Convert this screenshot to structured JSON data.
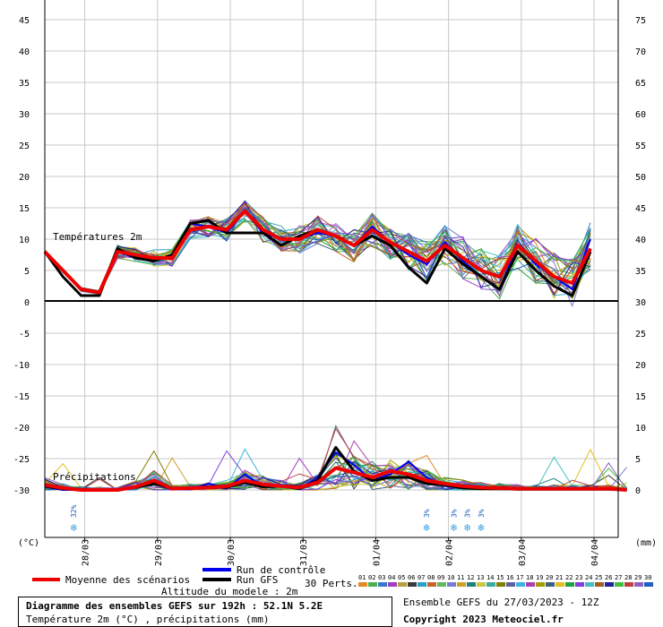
{
  "chart_data": {
    "type": "line",
    "title": "Diagramme des ensembles GEFS sur 192h : 52.1N 5.2E",
    "subtitle": "Température 2m (°C) , précipitations (mm)",
    "x_tick_labels": [
      "28/03",
      "29/03",
      "30/03",
      "31/03",
      "01/04",
      "02/04",
      "03/04",
      "04/04"
    ],
    "left_axis": {
      "unit_label": "(°C)",
      "ticks": [
        45,
        40,
        35,
        30,
        25,
        20,
        15,
        10,
        5,
        0,
        -5,
        -10,
        -15,
        -20,
        -25,
        -30
      ]
    },
    "right_axis": {
      "unit_label": "(mm)",
      "ticks": [
        75,
        70,
        65,
        60,
        55,
        50,
        45,
        40,
        35,
        30,
        25,
        20,
        15,
        10,
        5,
        0
      ]
    },
    "grid": true,
    "temperature_panel_label": "Températures 2m",
    "precip_panel_label": "Précipitations",
    "x_step_hours": 6,
    "temperature_series": [
      {
        "name": "Moyenne des scénarios",
        "color": "#ee0000",
        "values": [
          8,
          5,
          2,
          1.5,
          8,
          7.5,
          7,
          7,
          11.5,
          12,
          11.5,
          14.5,
          11.5,
          10,
          10,
          11.5,
          10.5,
          9,
          11.5,
          9.5,
          8,
          6.5,
          9,
          7,
          5,
          4,
          9,
          6.5,
          4,
          3,
          8.5
        ]
      },
      {
        "name": "Run de contrôle",
        "color": "#0000ee",
        "values": [
          8,
          5,
          2,
          1.5,
          8,
          7,
          7,
          7,
          12.5,
          12,
          11,
          14.5,
          11,
          10,
          10,
          11,
          10.5,
          9,
          12,
          9.5,
          7.5,
          6,
          9.5,
          6.5,
          4,
          2,
          9,
          6,
          4,
          2,
          10
        ]
      },
      {
        "name": "Run GFS",
        "color": "#000000",
        "values": [
          8,
          4,
          1,
          1,
          8.5,
          7,
          6.5,
          7.5,
          12.5,
          13,
          11,
          11,
          11,
          9,
          10.5,
          11.5,
          10.5,
          9,
          10.5,
          9,
          5.5,
          3,
          8.5,
          6,
          4,
          2,
          8,
          5,
          2.5,
          1,
          8
        ]
      }
    ],
    "precip_series": [
      {
        "name": "Moyenne des scénarios",
        "color": "#ee0000",
        "values": [
          0.8,
          0.3,
          0,
          0,
          0,
          0.5,
          1.5,
          0.2,
          0.3,
          0.4,
          0.6,
          1.5,
          0.9,
          0.6,
          0.4,
          1.2,
          3.5,
          2.8,
          2,
          3,
          2.5,
          1.5,
          1,
          0.6,
          0.4,
          0.3,
          0.2,
          0.2,
          0.2,
          0.2,
          0.2,
          0.2,
          0
        ]
      },
      {
        "name": "Run de contrôle",
        "color": "#0000ee",
        "values": [
          0.5,
          0,
          0,
          0,
          0,
          0.5,
          1.5,
          0.1,
          0.1,
          1,
          0.3,
          2.5,
          0.5,
          0.8,
          0.2,
          2,
          6,
          4,
          1.5,
          2.5,
          4.5,
          2,
          0.6,
          0.4,
          0.3,
          0.5,
          0.1,
          0.1,
          0.2,
          0.1,
          0.1,
          0.2,
          0
        ]
      },
      {
        "name": "Run GFS",
        "color": "#000000",
        "values": [
          0.6,
          0.2,
          0,
          0,
          0,
          0.4,
          1,
          0.3,
          0.2,
          0.5,
          0.4,
          1.2,
          0.5,
          0.6,
          0.2,
          1.5,
          6.8,
          3,
          1.5,
          2,
          2,
          1,
          0.8,
          0.3,
          0.2,
          0.2,
          0.1,
          0.1,
          0.1,
          0.1,
          0.1,
          0.1,
          0
        ]
      }
    ],
    "snow_markers": [
      {
        "step": 0.6,
        "percent": "32%"
      },
      {
        "step": 20.0,
        "percent": "3%"
      },
      {
        "step": 21.5,
        "percent": "3%"
      },
      {
        "step": 22.25,
        "percent": "3%"
      },
      {
        "step": 23.0,
        "percent": "3%"
      }
    ]
  },
  "legend": {
    "mean_label": "Moyenne des scénarios",
    "control_label": "Run de contrôle",
    "gfs_label": "Run GFS",
    "perts_label": "30 Perts.",
    "members": [
      {
        "id": "01",
        "color": "#e08a28"
      },
      {
        "id": "02",
        "color": "#4ab04a"
      },
      {
        "id": "03",
        "color": "#3a78c8"
      },
      {
        "id": "04",
        "color": "#a040c0"
      },
      {
        "id": "05",
        "color": "#b8a040"
      },
      {
        "id": "06",
        "color": "#3a3a3a"
      },
      {
        "id": "07",
        "color": "#28a0c8"
      },
      {
        "id": "08",
        "color": "#c86428"
      },
      {
        "id": "09",
        "color": "#60b860"
      },
      {
        "id": "10",
        "color": "#7a7ad0"
      },
      {
        "id": "11",
        "color": "#d0a020"
      },
      {
        "id": "12",
        "color": "#208080"
      },
      {
        "id": "13",
        "color": "#c8c840"
      },
      {
        "id": "14",
        "color": "#40a8a0"
      },
      {
        "id": "15",
        "color": "#808000"
      },
      {
        "id": "16",
        "color": "#6060a0"
      },
      {
        "id": "17",
        "color": "#3cb4e0"
      },
      {
        "id": "18",
        "color": "#b040b0"
      },
      {
        "id": "19",
        "color": "#a0a000"
      },
      {
        "id": "20",
        "color": "#406080"
      },
      {
        "id": "21",
        "color": "#e0c020"
      },
      {
        "id": "22",
        "color": "#20a040"
      },
      {
        "id": "23",
        "color": "#8040e0"
      },
      {
        "id": "24",
        "color": "#40c0c0"
      },
      {
        "id": "25",
        "color": "#a06020"
      },
      {
        "id": "26",
        "color": "#2020a0"
      },
      {
        "id": "27",
        "color": "#40c040"
      },
      {
        "id": "28",
        "color": "#c04040"
      },
      {
        "id": "29",
        "color": "#9060c0"
      },
      {
        "id": "30",
        "color": "#2060c0"
      }
    ]
  },
  "footer": {
    "altitude": "Altitude du modele : 2m",
    "title": "Diagramme des ensembles GEFS sur 192h : 52.1N 5.2E",
    "subtitle": "Température 2m (°C) , précipitations (mm)",
    "ensemble_run": "Ensemble GEFS du 27/03/2023 - 12Z",
    "copyright": "Copyright 2023 Meteociel.fr"
  }
}
